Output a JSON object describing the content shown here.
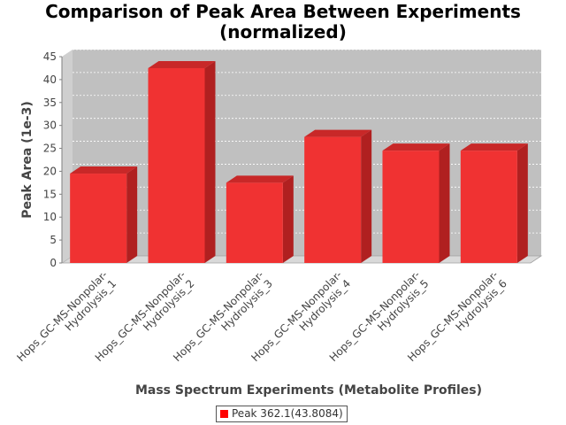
{
  "chart_data": {
    "type": "bar",
    "title": "Comparison of Peak Area Between Experiments",
    "subtitle": "(normalized)",
    "xlabel": "Mass Spectrum Experiments (Metabolite Profiles)",
    "ylabel": "Peak Area (1e-3)",
    "ylim": [
      0,
      45
    ],
    "yticks": [
      0,
      5,
      10,
      15,
      20,
      25,
      30,
      35,
      40,
      45
    ],
    "grid": true,
    "legend_position": "bottom-center",
    "categories": [
      [
        "Hops_GC-MS-Nonpolar-",
        "Hydrolysis_1"
      ],
      [
        "Hops_GC-MS-Nonpolar-",
        "Hydrolysis_2"
      ],
      [
        "Hops_GC-MS-Nonpolar-",
        "Hydrolysis_3"
      ],
      [
        "Hops_GC-MS-Nonpolar-",
        "Hydrolysis_4"
      ],
      [
        "Hops_GC-MS-Nonpolar-",
        "Hydrolysis_5"
      ],
      [
        "Hops_GC-MS-Nonpolar-",
        "Hydrolysis_6"
      ]
    ],
    "series": [
      {
        "name": "Peak 362.1(43.8084)",
        "color": "#ff0000",
        "values": [
          19.5,
          42.5,
          17.5,
          27.5,
          24.5,
          24.5
        ]
      }
    ]
  }
}
